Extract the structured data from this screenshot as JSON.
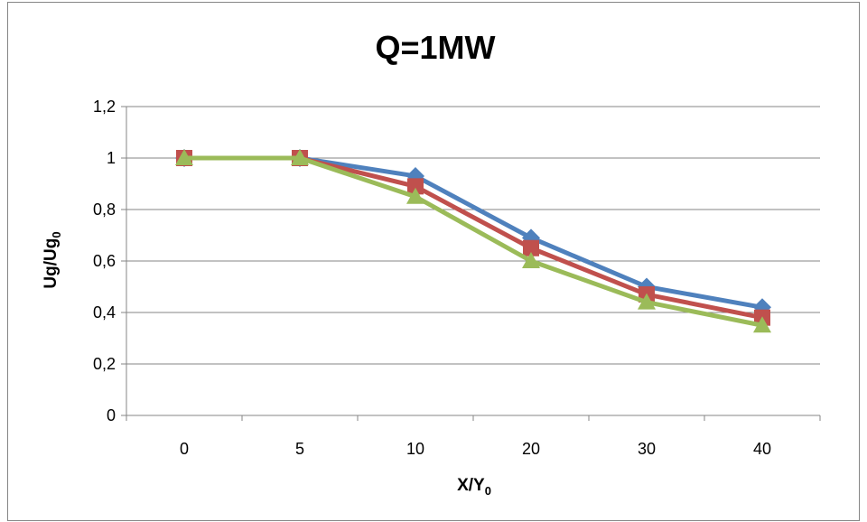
{
  "chart_data": {
    "type": "line",
    "title": "Q=1MW",
    "xlabel": {
      "main": "X/Y",
      "sub": "0"
    },
    "ylabel": {
      "main": "Ug/Ug",
      "sub": "0"
    },
    "categories": [
      "0",
      "5",
      "10",
      "20",
      "30",
      "40"
    ],
    "ylim": [
      0,
      1.2
    ],
    "yticks": [
      0,
      0.2,
      0.4,
      0.6,
      0.8,
      1,
      1.2
    ],
    "ytick_labels": [
      "0",
      "0,2",
      "0,4",
      "0,6",
      "0,8",
      "1",
      "1,2"
    ],
    "grid": true,
    "legend": "none",
    "series": [
      {
        "values": [
          1,
          1,
          0.93,
          0.69,
          0.5,
          0.42
        ],
        "color": "#4F81BD",
        "marker": "diamond"
      },
      {
        "values": [
          1,
          1,
          0.89,
          0.65,
          0.47,
          0.38
        ],
        "color": "#C0504D",
        "marker": "square"
      },
      {
        "values": [
          1,
          1,
          0.85,
          0.6,
          0.44,
          0.35
        ],
        "color": "#9BBB59",
        "marker": "triangle"
      }
    ]
  }
}
